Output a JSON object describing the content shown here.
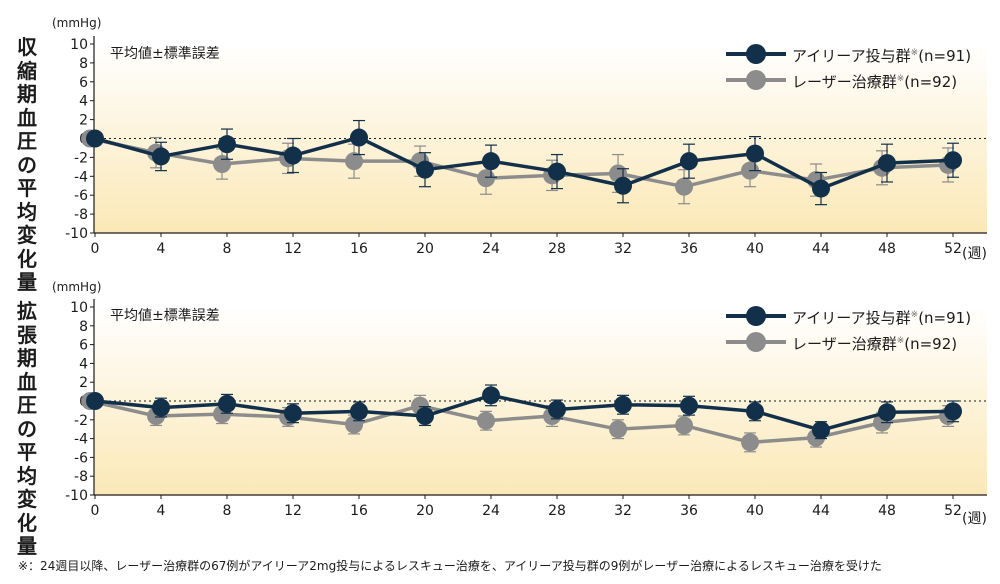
{
  "legend": {
    "series1": "アイリーア投与群",
    "series1_mark": "※",
    "series1_n": "(n=91)",
    "series2": "レーザー治療群",
    "series2_mark": "※",
    "series2_n": "(n=92)",
    "series1_color": "#12304a",
    "series2_color": "#8c8c8c"
  },
  "footnote": "※：24週目以降、レーザー治療群の67例がアイリーア2mg投与によるレスキュー治療を、アイリーア投与群の9例がレーザー治療によるレスキュー治療を受けた",
  "chart_data": [
    {
      "type": "line",
      "ylabel": "収縮期血圧の平均変化量",
      "unit": "(mmHg)",
      "note": "平均値±標準誤差",
      "x_unit": "(週)",
      "x_ticks": [
        0,
        4,
        8,
        12,
        16,
        20,
        24,
        28,
        32,
        36,
        40,
        44,
        48,
        52
      ],
      "ylim": [
        -10,
        10
      ],
      "y_ticks": [
        10,
        8,
        6,
        4,
        2,
        0,
        -2,
        -4,
        -6,
        -8,
        -10
      ],
      "zero_line": "dotted",
      "background": "gradient-cream",
      "series": [
        {
          "name": "アイリーア投与群",
          "x": [
            0,
            4,
            8,
            12,
            16,
            20,
            24,
            28,
            32,
            36,
            40,
            44,
            48,
            52
          ],
          "values": [
            0.0,
            -1.9,
            -0.6,
            -1.8,
            0.1,
            -3.3,
            -2.4,
            -3.5,
            -5.0,
            -2.4,
            -1.6,
            -5.3,
            -2.6,
            -2.3
          ],
          "err": [
            0.0,
            1.5,
            1.6,
            1.8,
            1.8,
            1.8,
            1.7,
            1.8,
            1.8,
            1.8,
            1.8,
            1.7,
            2.0,
            1.8
          ]
        },
        {
          "name": "レーザー治療群",
          "x": [
            -0.3,
            3.7,
            7.7,
            11.7,
            15.7,
            19.7,
            23.7,
            27.7,
            31.7,
            35.7,
            39.7,
            43.7,
            47.7,
            51.7
          ],
          "values": [
            0.0,
            -1.5,
            -2.7,
            -2.1,
            -2.4,
            -2.4,
            -4.2,
            -3.9,
            -3.7,
            -5.1,
            -3.4,
            -4.4,
            -3.1,
            -2.8
          ],
          "err": [
            0.0,
            1.6,
            1.6,
            1.6,
            1.8,
            1.6,
            1.7,
            1.6,
            2.0,
            1.8,
            1.7,
            1.7,
            1.8,
            1.8
          ]
        }
      ]
    },
    {
      "type": "line",
      "ylabel": "拡張期血圧の平均変化量",
      "unit": "(mmHg)",
      "note": "平均値±標準誤差",
      "x_unit": "(週)",
      "x_ticks": [
        0,
        4,
        8,
        12,
        16,
        20,
        24,
        28,
        32,
        36,
        40,
        44,
        48,
        52
      ],
      "ylim": [
        -10,
        10
      ],
      "y_ticks": [
        10,
        8,
        6,
        4,
        2,
        0,
        -2,
        -4,
        -6,
        -8,
        -10
      ],
      "zero_line": "dotted",
      "background": "gradient-cream",
      "series": [
        {
          "name": "アイリーア投与群",
          "x": [
            0,
            4,
            8,
            12,
            16,
            20,
            24,
            28,
            32,
            36,
            40,
            44,
            48,
            52
          ],
          "values": [
            0.0,
            -0.7,
            -0.3,
            -1.3,
            -1.1,
            -1.6,
            0.6,
            -0.9,
            -0.4,
            -0.5,
            -1.1,
            -3.1,
            -1.2,
            -1.1
          ],
          "err": [
            0.0,
            1.0,
            1.0,
            1.0,
            1.0,
            1.0,
            1.1,
            1.0,
            1.0,
            1.0,
            1.0,
            0.9,
            1.1,
            1.1
          ]
        },
        {
          "name": "レーザー治療群",
          "x": [
            -0.3,
            3.7,
            7.7,
            11.7,
            15.7,
            19.7,
            23.7,
            27.7,
            31.7,
            35.7,
            39.7,
            43.7,
            47.7,
            51.7
          ],
          "values": [
            0.0,
            -1.6,
            -1.4,
            -1.7,
            -2.5,
            -0.5,
            -2.1,
            -1.6,
            -3.0,
            -2.6,
            -4.4,
            -3.9,
            -2.3,
            -1.6
          ],
          "err": [
            0.0,
            1.0,
            1.0,
            1.0,
            1.0,
            1.1,
            1.0,
            1.1,
            1.0,
            1.0,
            1.0,
            1.0,
            1.1,
            1.1
          ]
        }
      ]
    }
  ]
}
